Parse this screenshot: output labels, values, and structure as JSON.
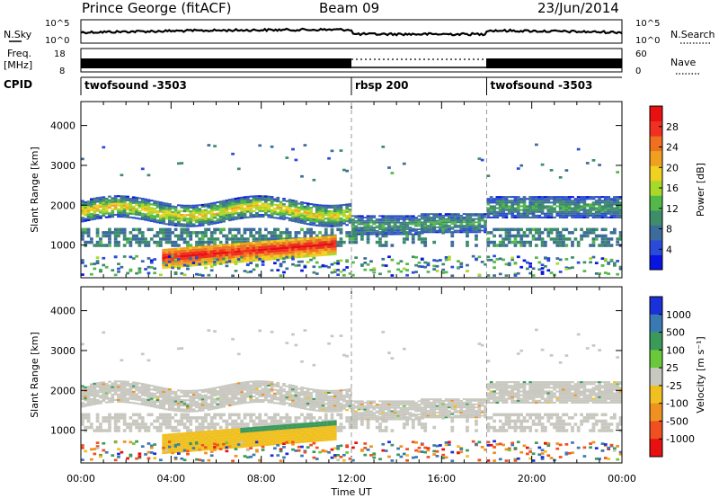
{
  "header": {
    "station": "Prince George (fitACF)",
    "beam": "Beam 09",
    "date": "23/Jun/2014"
  },
  "noise_panel": {
    "left_label": "N.Sky",
    "right_label": "N.Search",
    "left_ticks": [
      "10^5",
      "10^0"
    ],
    "right_ticks": [
      "10^5",
      "10^0"
    ]
  },
  "freq_panel": {
    "left_label_1": "Freq.",
    "left_label_2": "[MHz]",
    "right_label": "Nave",
    "left_ticks": [
      "18",
      "8"
    ],
    "right_ticks": [
      "60",
      "0"
    ]
  },
  "cpid": {
    "label": "CPID",
    "segments": [
      {
        "name": "twofsound -3503",
        "start_hour": 0,
        "end_hour": 12
      },
      {
        "name": "rbsp 200",
        "start_hour": 12,
        "end_hour": 18
      },
      {
        "name": "twofsound -3503",
        "start_hour": 18,
        "end_hour": 24
      }
    ]
  },
  "chart_data": [
    {
      "type": "heatmap",
      "title": "",
      "xlabel": "Time UT",
      "ylabel": "Slant Range [km]",
      "x_range_hours": [
        0,
        24
      ],
      "ylim": [
        180,
        4600
      ],
      "y_ticks": [
        1000,
        2000,
        3000,
        4000
      ],
      "x_tick_labels": [
        "00:00",
        "04:00",
        "08:00",
        "12:00",
        "16:00",
        "20:00",
        "00:00"
      ],
      "colorbar": {
        "label": "Power [dB]",
        "range": [
          0,
          32
        ],
        "ticks": [
          4,
          8,
          12,
          16,
          20,
          24,
          28
        ],
        "colors": [
          "#0a14e0",
          "#2a4ad8",
          "#3c6c9c",
          "#3e8c6a",
          "#52b84a",
          "#a8d828",
          "#f0d020",
          "#f0a020",
          "#f07020",
          "#f03020",
          "#e81010"
        ]
      },
      "features": [
        {
          "desc": "band",
          "start_hour": 0,
          "end_hour": 12,
          "range_km": [
            1500,
            2200
          ],
          "mean_value": 14
        },
        {
          "desc": "band",
          "start_hour": 18,
          "end_hour": 24,
          "range_km": [
            1800,
            2200
          ],
          "mean_value": 10
        },
        {
          "desc": "enhancement",
          "start_hour": 4,
          "end_hour": 11,
          "range_km": [
            500,
            1100
          ],
          "mean_value": 28
        }
      ]
    },
    {
      "type": "heatmap",
      "title": "",
      "xlabel": "Time UT",
      "ylabel": "Slant Range [km]",
      "x_range_hours": [
        0,
        24
      ],
      "ylim": [
        180,
        4600
      ],
      "y_ticks": [
        1000,
        2000,
        3000,
        4000
      ],
      "x_tick_labels": [
        "00:00",
        "04:00",
        "08:00",
        "12:00",
        "16:00",
        "20:00",
        "00:00"
      ],
      "colorbar": {
        "label": "Velocity [m s^-1]",
        "tick_labels": [
          "1000",
          "500",
          "100",
          "25",
          "-25",
          "-100",
          "-500",
          "-1000"
        ],
        "colors": [
          "#1a30d8",
          "#3a7ab4",
          "#3a9a5a",
          "#6ac83a",
          "#c8c8c0",
          "#f0c020",
          "#f09020",
          "#f05020",
          "#e81010"
        ]
      },
      "features": [
        {
          "desc": "ground scatter",
          "start_hour": 0,
          "end_hour": 24,
          "range_km": [
            1200,
            2200
          ],
          "mean_value": 0
        },
        {
          "desc": "enhancement",
          "start_hour": 7,
          "end_hour": 11.5,
          "range_km": [
            1100,
            1450
          ],
          "mean_value": 150
        }
      ]
    }
  ]
}
